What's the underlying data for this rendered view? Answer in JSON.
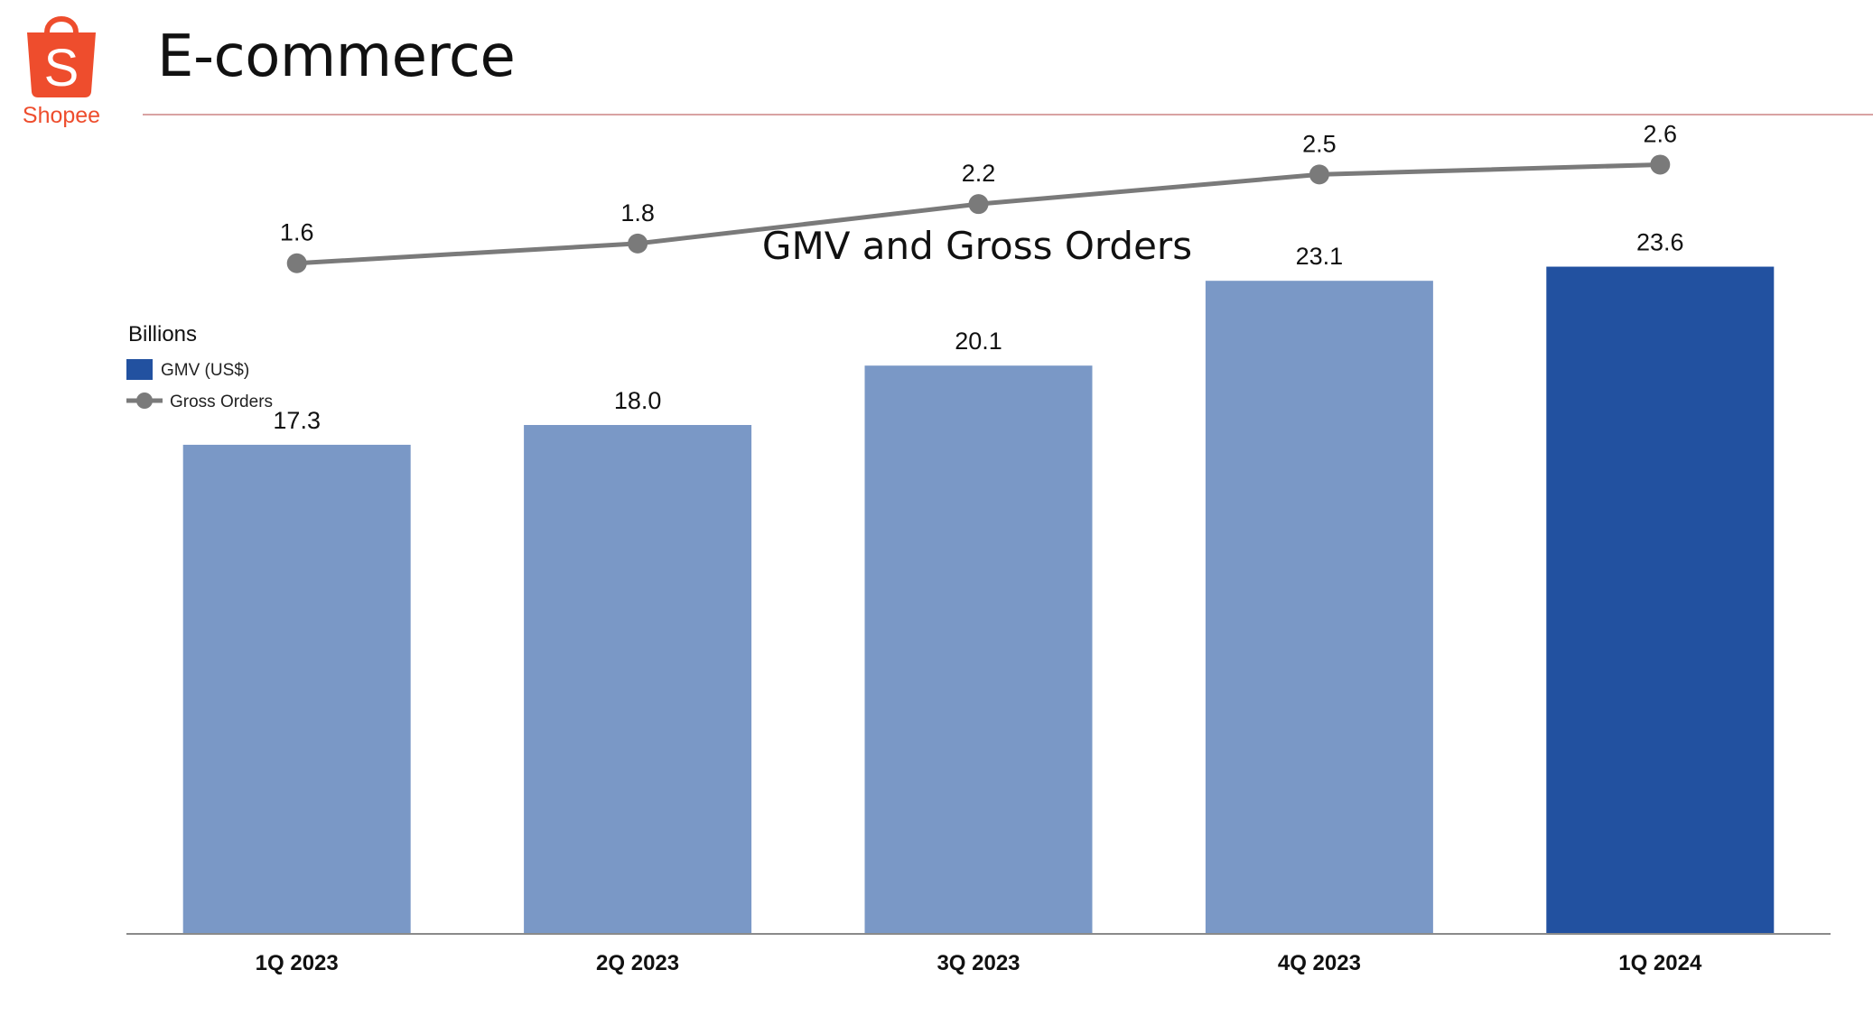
{
  "header": {
    "logo_text": "Shopee",
    "logo_letter": "S",
    "title": "E-commerce"
  },
  "colors": {
    "brand": "#ee4d2d",
    "bar_light": "#7a98c6",
    "bar_highlight": "#2251a0",
    "line": "#7a7a7a",
    "axis": "#8a8a8a",
    "rule": "#d9a3a3"
  },
  "chart_data": {
    "type": "bar",
    "title": "GMV and Gross Orders",
    "unit_label": "Billions",
    "categories": [
      "1Q 2023",
      "2Q 2023",
      "3Q 2023",
      "4Q 2023",
      "1Q 2024"
    ],
    "series": [
      {
        "name": "GMV (US$)",
        "type": "bar",
        "values": [
          17.3,
          18.0,
          20.1,
          23.1,
          23.6
        ],
        "labels": [
          "17.3",
          "18.0",
          "20.1",
          "23.1",
          "23.6"
        ],
        "highlight_index": 4
      },
      {
        "name": "Gross Orders",
        "type": "line",
        "values": [
          1.6,
          1.8,
          2.2,
          2.5,
          2.6
        ],
        "labels": [
          "1.6",
          "1.8",
          "2.2",
          "2.5",
          "2.6"
        ]
      }
    ],
    "ylim_bar": [
      0,
      30
    ],
    "ylim_line": [
      -5.2,
      3.4
    ],
    "grid": false,
    "legend_position": "top-left"
  }
}
